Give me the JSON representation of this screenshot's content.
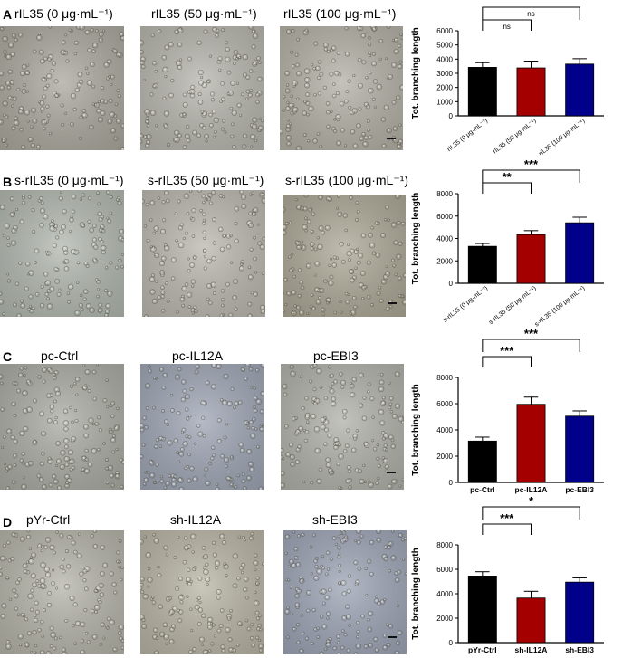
{
  "panels": [
    {
      "letter": "A",
      "titles": [
        "rIL35 (0 μg·mL⁻¹)",
        "rIL35 (50 μg·mL⁻¹)",
        "rIL35 (100 μg·mL⁻¹)"
      ],
      "background_colors": [
        "#a9a79c",
        "#b5b4ac",
        "#b2afa4"
      ]
    },
    {
      "letter": "B",
      "titles": [
        "s-rIL35 (0 μg·mL⁻¹)",
        "s-rIL35 (50 μg·mL⁻¹)",
        "s-rIL35 (100 μg·mL⁻¹)"
      ],
      "background_colors": [
        "#b0b7ae",
        "#b9b7ad",
        "#aba694"
      ]
    },
    {
      "letter": "C",
      "titles": [
        "pc-Ctrl",
        "pc-IL12A",
        "pc-EBI3"
      ],
      "background_colors": [
        "#a9aaa2",
        "#9da4b3",
        "#b0b0a9"
      ]
    },
    {
      "letter": "D",
      "titles": [
        "pYr-Ctrl",
        "sh-IL12A",
        "sh-EBI3"
      ],
      "background_colors": [
        "#b4b3a8",
        "#b8b4a4",
        "#9ca3b4"
      ]
    }
  ],
  "chart_data": [
    {
      "type": "bar",
      "ylabel": "Tot. branching length",
      "ylim": [
        0,
        6000
      ],
      "yticks": [
        "0",
        "1000",
        "2000",
        "3000",
        "4000",
        "5000",
        "6000"
      ],
      "categories": [
        "rIL35 (0 μg·mL⁻¹)",
        "rIL35 (50 μg·mL⁻¹)",
        "rIL35 (100 μg·mL⁻¹)"
      ],
      "values": [
        3420,
        3380,
        3650
      ],
      "errors": [
        330,
        480,
        380
      ],
      "colors": [
        "#000000",
        "#a50000",
        "#00008b"
      ],
      "tick_rotated": true,
      "significance": [
        {
          "from": 0,
          "to": 1,
          "label": "ns"
        },
        {
          "from": 0,
          "to": 2,
          "label": "ns"
        }
      ]
    },
    {
      "type": "bar",
      "ylabel": "Tot. branching length",
      "ylim": [
        0,
        8000
      ],
      "yticks": [
        "0",
        "2000",
        "4000",
        "6000",
        "8000"
      ],
      "categories": [
        "s-rIL35 (0 μg·mL⁻¹)",
        "s-rIL35 (50 μg·mL⁻¹)",
        "s-rIL35 (100 μg·mL⁻¹)"
      ],
      "values": [
        3300,
        4350,
        5400
      ],
      "errors": [
        250,
        350,
        500
      ],
      "colors": [
        "#000000",
        "#a50000",
        "#00008b"
      ],
      "tick_rotated": true,
      "significance": [
        {
          "from": 0,
          "to": 1,
          "label": "**"
        },
        {
          "from": 0,
          "to": 2,
          "label": "***"
        }
      ]
    },
    {
      "type": "bar",
      "ylabel": "Tot. branching length",
      "ylim": [
        0,
        8000
      ],
      "yticks": [
        "0",
        "2000",
        "4000",
        "6000",
        "8000"
      ],
      "categories": [
        "pc-Ctrl",
        "pc-IL12A",
        "pc-EBI3"
      ],
      "values": [
        3150,
        5950,
        5050
      ],
      "errors": [
        300,
        550,
        400
      ],
      "colors": [
        "#000000",
        "#a50000",
        "#00008b"
      ],
      "tick_rotated": false,
      "significance": [
        {
          "from": 0,
          "to": 1,
          "label": "***"
        },
        {
          "from": 0,
          "to": 2,
          "label": "***"
        }
      ]
    },
    {
      "type": "bar",
      "ylabel": "Tot. branching length",
      "ylim": [
        0,
        8000
      ],
      "yticks": [
        "0",
        "2000",
        "4000",
        "6000",
        "8000"
      ],
      "categories": [
        "pYr-Ctrl",
        "sh-IL12A",
        "sh-EBI3"
      ],
      "values": [
        5450,
        3650,
        4950
      ],
      "errors": [
        350,
        550,
        350
      ],
      "colors": [
        "#000000",
        "#a50000",
        "#00008b"
      ],
      "tick_rotated": false,
      "significance": [
        {
          "from": 0,
          "to": 1,
          "label": "***"
        },
        {
          "from": 0,
          "to": 2,
          "label": "*"
        }
      ]
    }
  ]
}
